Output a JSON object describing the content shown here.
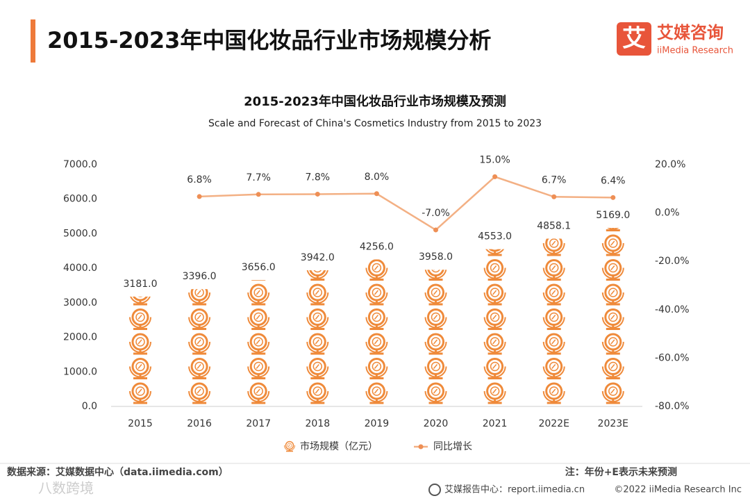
{
  "header": {
    "title": "2015-2023年中国化妆品行业市场规模分析",
    "logo_mark": "艾",
    "logo_name": "艾媒咨询",
    "logo_sub": "iiMedia Research"
  },
  "chart_data": {
    "type": "combo",
    "title": "2015-2023年中国化妆品行业市场规模及预测",
    "subtitle": "Scale and Forecast of China's Cosmetics Industry from 2015 to 2023",
    "categories": [
      "2015",
      "2016",
      "2017",
      "2018",
      "2019",
      "2020",
      "2021",
      "2022E",
      "2023E"
    ],
    "series": [
      {
        "name": "市场规模（亿元）",
        "color": "#ef8a3a",
        "values": [
          3181,
          3396,
          3656,
          3942,
          4256,
          3958,
          4553,
          4858.1,
          5169
        ],
        "value_labels": [
          "3181.0",
          "3396.0",
          "3656.0",
          "3942.0",
          "4256.0",
          "3958.0",
          "4553.0",
          "4858.1",
          "5169.0"
        ]
      },
      {
        "name": "同比增长",
        "color": "#f3b084",
        "axis": "y2",
        "values": [
          null,
          6.8,
          7.7,
          7.8,
          8.0,
          -7.0,
          15.0,
          6.7,
          6.4
        ],
        "value_labels": [
          null,
          "6.8%",
          "7.7%",
          "7.8%",
          "8.0%",
          "-7.0%",
          "15.0%",
          "6.7%",
          "6.4%"
        ]
      }
    ],
    "ylim": [
      0,
      7000
    ],
    "yticks": [
      {
        "value": 0,
        "label": "0.0"
      },
      {
        "value": 1000,
        "label": "1000.0"
      },
      {
        "value": 2000,
        "label": "2000.0"
      },
      {
        "value": 3000,
        "label": "3000.0"
      },
      {
        "value": 4000,
        "label": "4000.0"
      },
      {
        "value": 5000,
        "label": "5000.0"
      },
      {
        "value": 6000,
        "label": "6000.0"
      },
      {
        "value": 7000,
        "label": "7000.0"
      }
    ],
    "y2lim": [
      -80,
      20
    ],
    "y2ticks": [
      {
        "value": -80,
        "label": "-80.0%"
      },
      {
        "value": -60,
        "label": "-60.0%"
      },
      {
        "value": -40,
        "label": "-40.0%"
      },
      {
        "value": -20,
        "label": "-20.0%"
      },
      {
        "value": 0,
        "label": "0.0%"
      },
      {
        "value": 20,
        "label": "20.0%"
      }
    ]
  },
  "footer": {
    "source": "数据来源：艾媒数据中心（data.iimedia.com）",
    "note": "注：年份+E表示未来预测",
    "report": "艾媒报告中心：report.iimedia.cn",
    "copyright": "©2022  iiMedia Research  Inc",
    "watermark": "八数跨境"
  }
}
